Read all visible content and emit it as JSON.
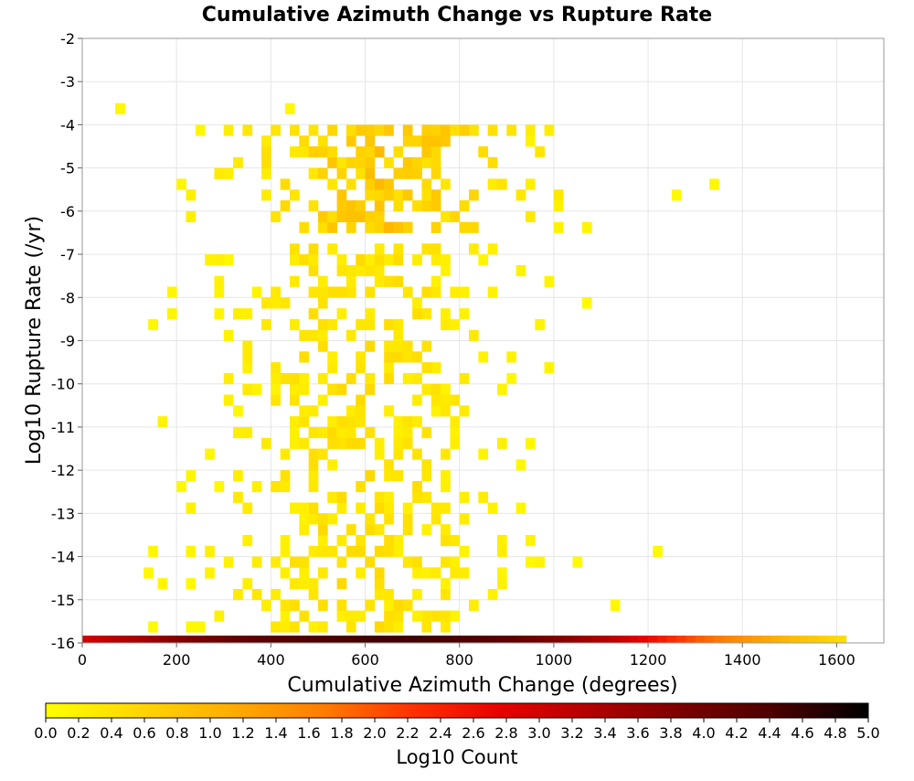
{
  "chart_data": {
    "type": "heatmap",
    "title": "Cumulative Azimuth Change vs Rupture Rate",
    "xlabel": "Cumulative Azimuth Change (degrees)",
    "ylabel": "Log10 Rupture Rate (/yr)",
    "xlim": [
      0,
      1700
    ],
    "ylim": [
      -16,
      -2
    ],
    "x_ticks": [
      "0",
      "200",
      "400",
      "600",
      "800",
      "1000",
      "1200",
      "1400",
      "1600"
    ],
    "y_ticks": [
      "-2",
      "-3",
      "-4",
      "-5",
      "-6",
      "-7",
      "-8",
      "-9",
      "-10",
      "-11",
      "-12",
      "-13",
      "-14",
      "-15",
      "-16"
    ],
    "grid": true,
    "bin_width_x": 20,
    "bin_height_y": 0.25,
    "colorbar": {
      "label": "Log10 Count",
      "range": [
        0,
        5
      ],
      "ticks": [
        "0.0",
        "0.2",
        "0.4",
        "0.6",
        "0.8",
        "1.0",
        "1.2",
        "1.4",
        "1.6",
        "1.8",
        "2.0",
        "2.2",
        "2.4",
        "2.6",
        "2.8",
        "3.0",
        "3.2",
        "3.4",
        "3.6",
        "3.8",
        "4.0",
        "4.2",
        "4.4",
        "4.6",
        "4.8",
        "5.0"
      ],
      "colors": [
        "#ffff00",
        "#ffd700",
        "#ffae00",
        "#ff7f00",
        "#ff3300",
        "#e60000",
        "#b00000",
        "#7a0000",
        "#4a0000",
        "#000000"
      ]
    },
    "bottom_row": {
      "y": -16,
      "points": [
        {
          "x": 0,
          "v": 3.0
        },
        {
          "x": 100,
          "v": 3.4
        },
        {
          "x": 200,
          "v": 3.8
        },
        {
          "x": 300,
          "v": 4.1
        },
        {
          "x": 400,
          "v": 4.3
        },
        {
          "x": 500,
          "v": 4.4
        },
        {
          "x": 600,
          "v": 4.5
        },
        {
          "x": 700,
          "v": 4.5
        },
        {
          "x": 800,
          "v": 4.4
        },
        {
          "x": 900,
          "v": 4.2
        },
        {
          "x": 1000,
          "v": 3.8
        },
        {
          "x": 1100,
          "v": 3.3
        },
        {
          "x": 1200,
          "v": 2.6
        },
        {
          "x": 1300,
          "v": 1.9
        },
        {
          "x": 1400,
          "v": 1.4
        },
        {
          "x": 1500,
          "v": 0.9
        },
        {
          "x": 1620,
          "v": 0.4
        }
      ]
    },
    "density_bands": [
      {
        "y_min": -6.5,
        "y_max": -4.25,
        "x_min": 60,
        "x_max": 1320,
        "x_peak": 640,
        "x_spread": 230,
        "peak_v": 1.0,
        "fill": 0.62
      },
      {
        "y_min": -15.75,
        "y_max": -7.0,
        "x_min": 120,
        "x_max": 1220,
        "x_peak": 580,
        "x_spread": 260,
        "peak_v": 0.55,
        "fill": 0.42
      }
    ],
    "outliers": [
      {
        "x": 1250,
        "y": -5.75,
        "v": 0.1
      },
      {
        "x": 1330,
        "y": -5.5,
        "v": 0.1
      },
      {
        "x": 70,
        "y": -3.75,
        "v": 0.1
      },
      {
        "x": 430,
        "y": -3.75,
        "v": 0.1
      },
      {
        "x": 1210,
        "y": -14.0,
        "v": 0.1
      },
      {
        "x": 130,
        "y": -14.5,
        "v": 0.1
      }
    ]
  }
}
